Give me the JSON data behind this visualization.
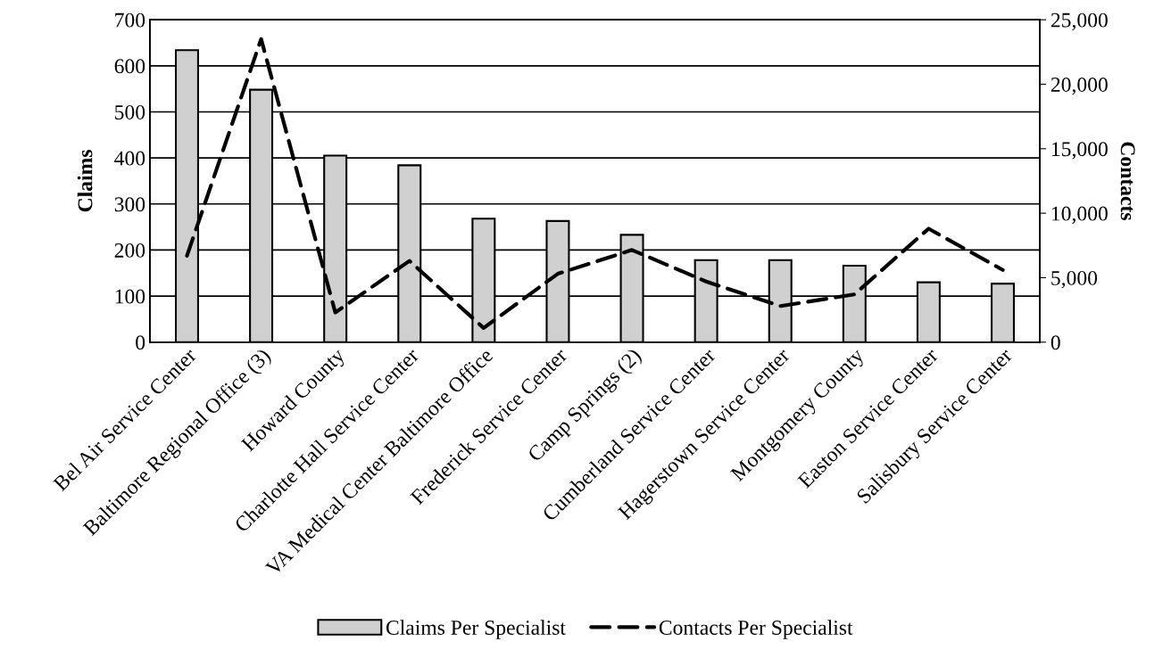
{
  "chart_data": {
    "type": "bar",
    "ylabel": "Claims",
    "y2label": "Contacts",
    "categories": [
      "Bel Air Service Center",
      "Baltimore Regional Office (3)",
      "Howard County",
      "Charlotte Hall Service Center",
      "VA Medical Center Baltimore Office",
      "Frederick Service Center",
      "Camp Springs (2)",
      "Cumberland Service Center",
      "Hagerstown Service Center",
      "Montgomery County",
      "Easton Service Center",
      "Salisbury Service Center"
    ],
    "series": [
      {
        "name": "Claims Per Specialist",
        "color": "#d0d0d0",
        "values": [
          634,
          548,
          405,
          384,
          268,
          263,
          233,
          178,
          178,
          166,
          130,
          127
        ]
      },
      {
        "name": "Contacts Per Specialist",
        "type": "line",
        "axis": "y2",
        "color": "#000000",
        "line_style": "dashed",
        "values": [
          6700,
          23500,
          2300,
          6300,
          1100,
          5300,
          7150,
          4700,
          2800,
          3700,
          8800,
          5600
        ]
      }
    ],
    "ylim": [
      0,
      700
    ],
    "yticks": [
      0,
      100,
      200,
      300,
      400,
      500,
      600,
      700
    ],
    "y2lim": [
      0,
      25000
    ],
    "y2ticks": [
      {
        "value": 0,
        "label": "0"
      },
      {
        "value": 5000,
        "label": "5,000"
      },
      {
        "value": 10000,
        "label": "10,000"
      },
      {
        "value": 15000,
        "label": "15,000"
      },
      {
        "value": 20000,
        "label": "20,000"
      },
      {
        "value": 25000,
        "label": "25,000"
      }
    ],
    "grid": "y",
    "legend": "bottom"
  }
}
